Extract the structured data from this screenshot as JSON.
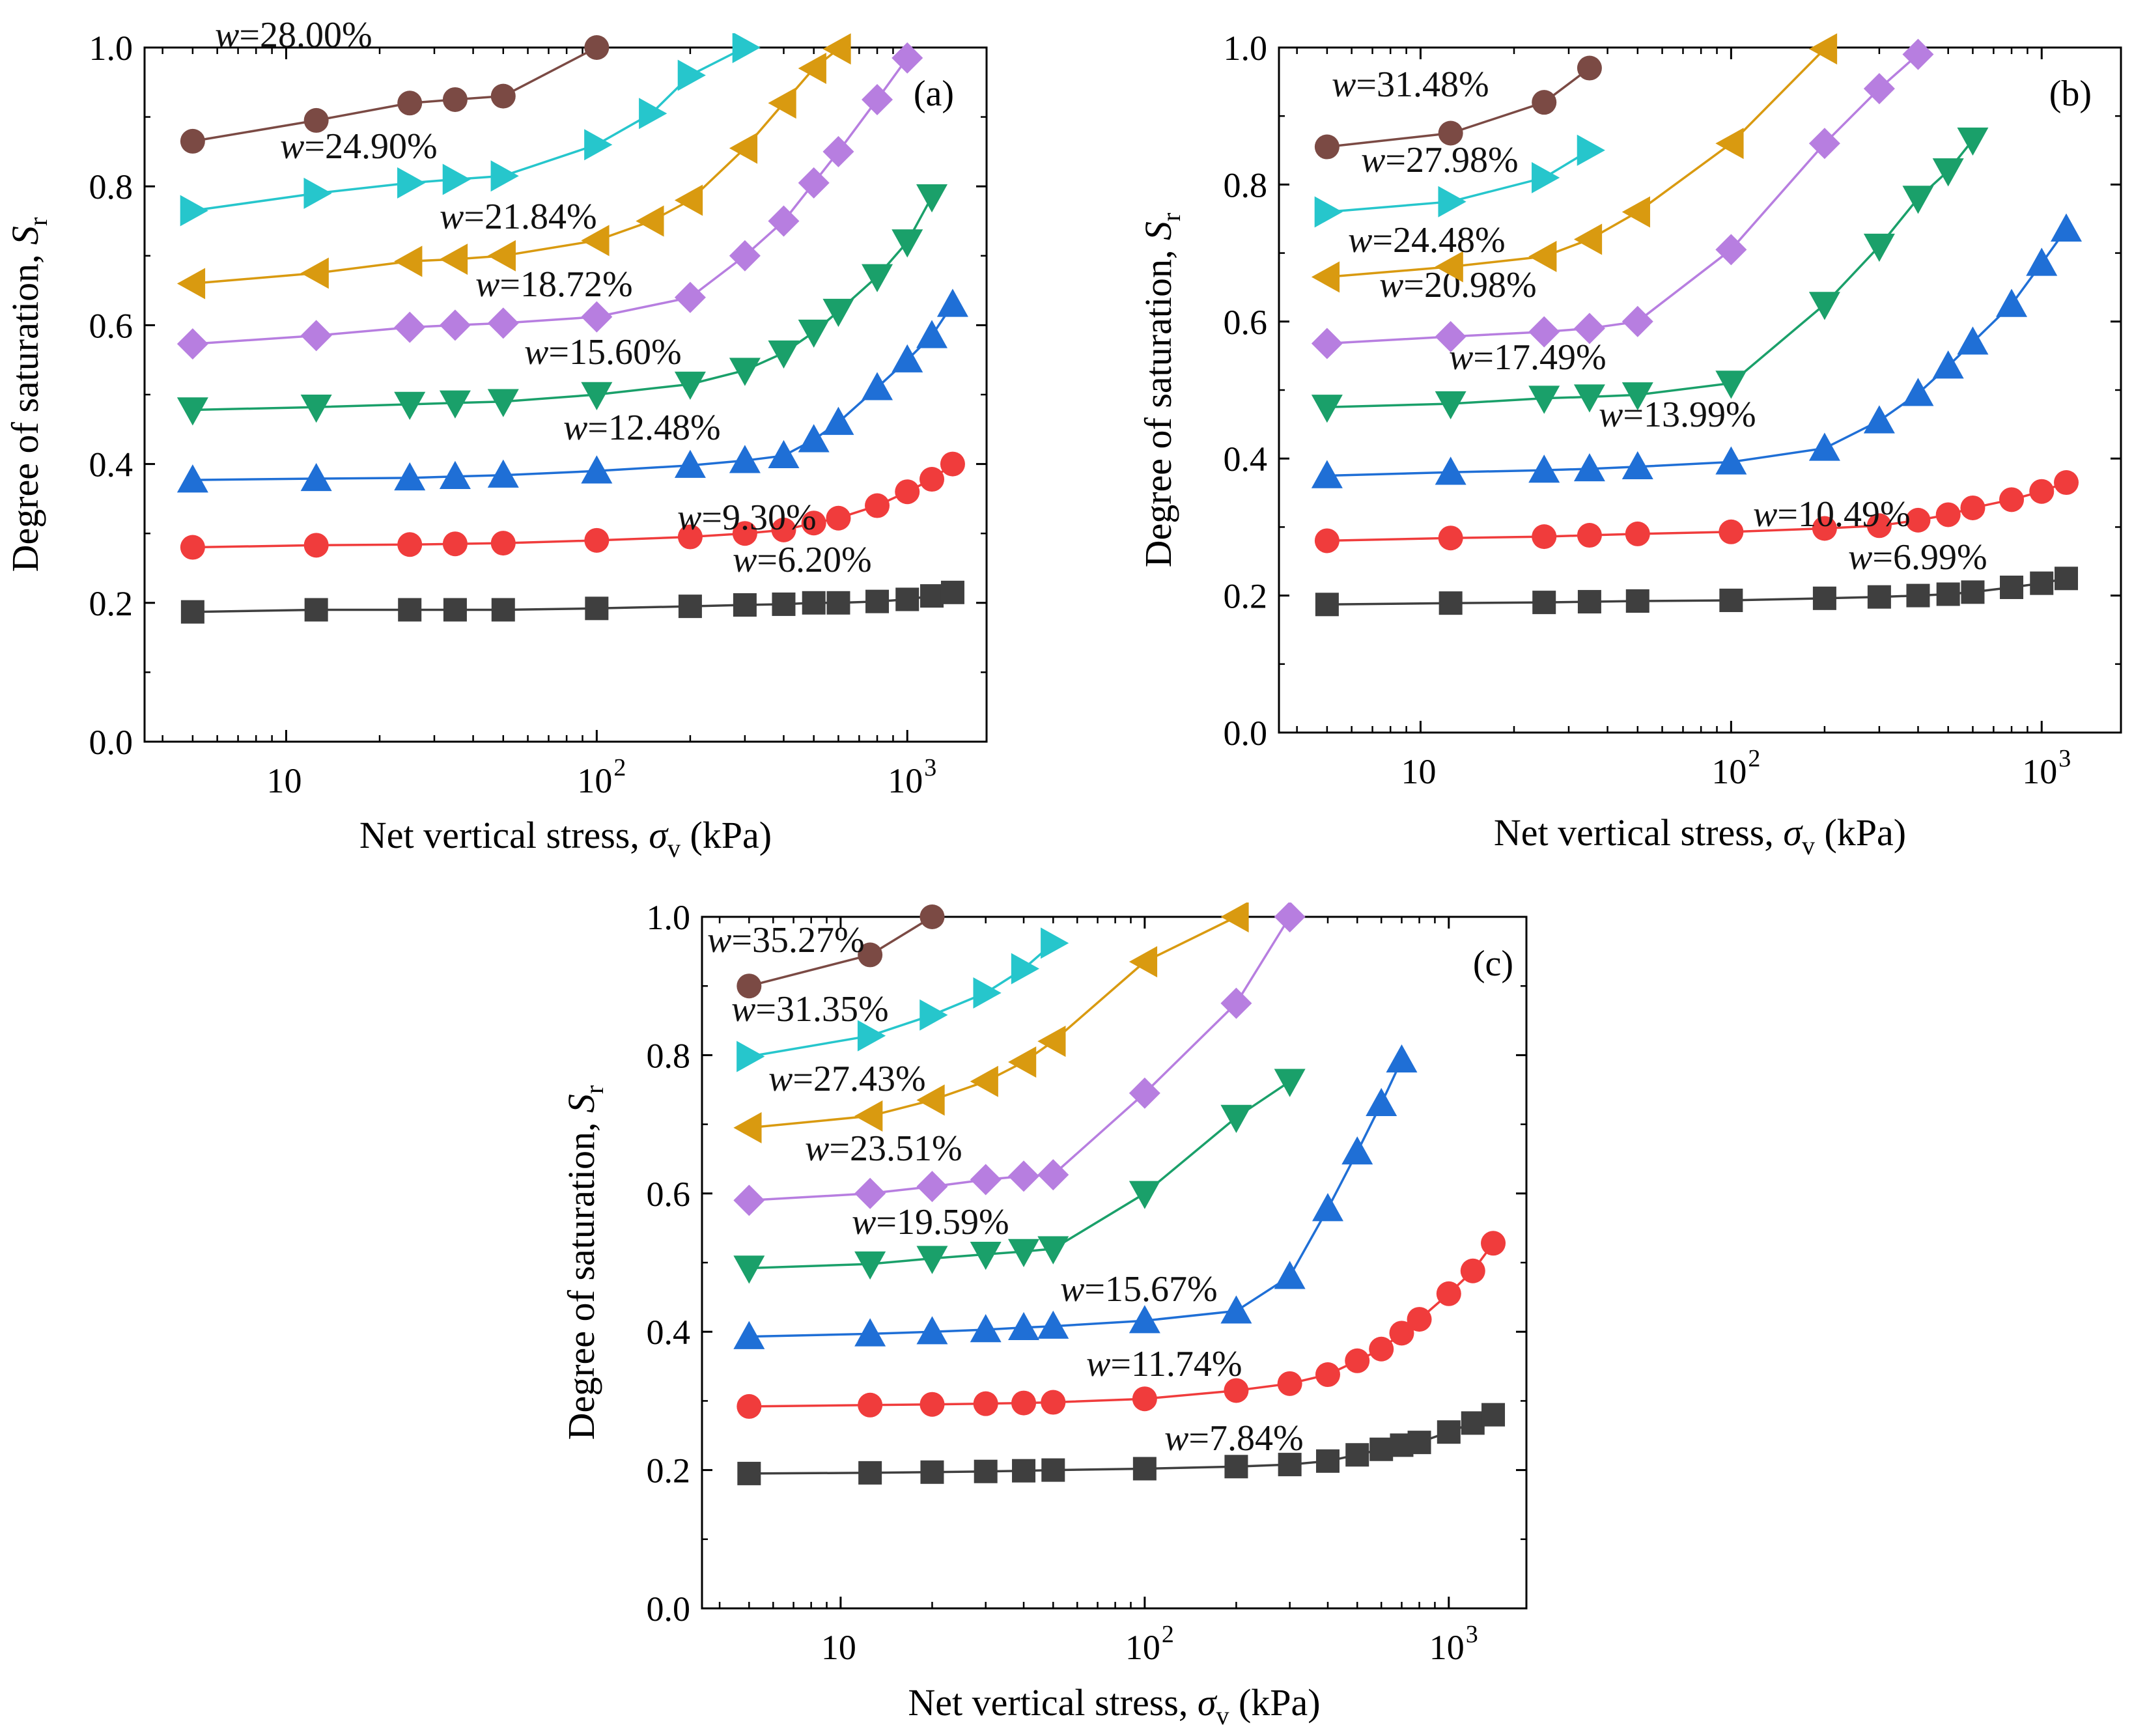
{
  "chart_data": [
    {
      "panel_label": "(a)",
      "type": "line",
      "xscale": "log",
      "xlim": [
        3.5,
        1800
      ],
      "ylim": [
        0,
        1.0
      ],
      "xlabel_prefix": "Net vertical stress, ",
      "xlabel_symbol": "σ",
      "xlabel_sub": "v",
      "xlabel_suffix": " (kPa)",
      "ylabel_prefix": "Degree of saturation, ",
      "ylabel_symbol": "S",
      "ylabel_sub": "r",
      "y_ticks": [
        "0.0",
        "0.2",
        "0.4",
        "0.6",
        "0.8",
        "1.0"
      ],
      "x_ticks": [
        {
          "base": "10",
          "exp": ""
        },
        {
          "base": "10",
          "exp": "2"
        },
        {
          "base": "10",
          "exp": "3"
        }
      ],
      "series": [
        {
          "name": "w=6.20%",
          "w_label": "w",
          "value_label": "=6.20%",
          "color": "#3f3f3f",
          "marker": "square",
          "x": [
            5,
            12.5,
            25,
            35,
            50,
            100,
            200,
            300,
            400,
            500,
            600,
            800,
            1000,
            1200,
            1400
          ],
          "y": [
            0.187,
            0.19,
            0.19,
            0.19,
            0.19,
            0.192,
            0.195,
            0.197,
            0.198,
            0.2,
            0.2,
            0.202,
            0.205,
            0.21,
            0.215
          ]
        },
        {
          "name": "w=9.30%",
          "w_label": "w",
          "value_label": "=9.30%",
          "color": "#f03c3c",
          "marker": "circle",
          "x": [
            5,
            12.5,
            25,
            35,
            50,
            100,
            200,
            300,
            400,
            500,
            600,
            800,
            1000,
            1200,
            1400
          ],
          "y": [
            0.28,
            0.283,
            0.284,
            0.285,
            0.286,
            0.29,
            0.295,
            0.3,
            0.305,
            0.315,
            0.322,
            0.34,
            0.36,
            0.378,
            0.4
          ]
        },
        {
          "name": "w=12.48%",
          "w_label": "w",
          "value_label": "=12.48%",
          "color": "#1f6fd6",
          "marker": "triangle-up",
          "x": [
            5,
            12.5,
            25,
            35,
            50,
            100,
            200,
            300,
            400,
            500,
            600,
            800,
            1000,
            1200,
            1400
          ],
          "y": [
            0.377,
            0.379,
            0.38,
            0.382,
            0.384,
            0.39,
            0.398,
            0.405,
            0.412,
            0.435,
            0.46,
            0.51,
            0.55,
            0.585,
            0.63
          ]
        },
        {
          "name": "w=15.60%",
          "w_label": "w",
          "value_label": "=15.60%",
          "color": "#1aa06a",
          "marker": "triangle-down",
          "x": [
            5,
            12.5,
            25,
            35,
            50,
            100,
            200,
            300,
            400,
            500,
            600,
            800,
            1000,
            1200
          ],
          "y": [
            0.478,
            0.482,
            0.486,
            0.488,
            0.49,
            0.5,
            0.515,
            0.535,
            0.56,
            0.59,
            0.62,
            0.67,
            0.72,
            0.785
          ]
        },
        {
          "name": "w=18.72%",
          "w_label": "w",
          "value_label": "=18.72%",
          "color": "#b77ee0",
          "marker": "diamond",
          "x": [
            5,
            12.5,
            25,
            35,
            50,
            100,
            200,
            300,
            400,
            500,
            600,
            800,
            1000
          ],
          "y": [
            0.573,
            0.585,
            0.597,
            0.6,
            0.603,
            0.612,
            0.64,
            0.7,
            0.75,
            0.805,
            0.85,
            0.925,
            0.985
          ]
        },
        {
          "name": "w=21.84%",
          "w_label": "w",
          "value_label": "=21.84%",
          "color": "#d99a10",
          "marker": "triangle-left",
          "x": [
            5,
            12.5,
            25,
            35,
            50,
            100,
            150,
            200,
            300,
            400,
            500,
            600
          ],
          "y": [
            0.66,
            0.675,
            0.692,
            0.695,
            0.7,
            0.722,
            0.75,
            0.78,
            0.855,
            0.92,
            0.97,
            0.998
          ]
        },
        {
          "name": "w=24.90%",
          "w_label": "w",
          "value_label": "=24.90%",
          "color": "#26c6cc",
          "marker": "triangle-right",
          "x": [
            5,
            12.5,
            25,
            35,
            50,
            100,
            150,
            200,
            300
          ],
          "y": [
            0.765,
            0.79,
            0.805,
            0.81,
            0.815,
            0.86,
            0.905,
            0.96,
            1.0
          ]
        },
        {
          "name": "w=28.00%",
          "w_label": "w",
          "value_label": "=28.00%",
          "color": "#7b4a44",
          "marker": "circle",
          "x": [
            5,
            12.5,
            25,
            35,
            50,
            100
          ],
          "y": [
            0.865,
            0.895,
            0.92,
            0.925,
            0.93,
            1.0
          ]
        }
      ]
    },
    {
      "panel_label": "(b)",
      "type": "line",
      "xscale": "log",
      "xlim": [
        3.5,
        1800
      ],
      "ylim": [
        0,
        1.0
      ],
      "xlabel_prefix": "Net vertical stress, ",
      "xlabel_symbol": "σ",
      "xlabel_sub": "v",
      "xlabel_suffix": " (kPa)",
      "ylabel_prefix": "Degree of saturation, ",
      "ylabel_symbol": "S",
      "ylabel_sub": "r",
      "y_ticks": [
        "0.0",
        "0.2",
        "0.4",
        "0.6",
        "0.8",
        "1.0"
      ],
      "x_ticks": [
        {
          "base": "10",
          "exp": ""
        },
        {
          "base": "10",
          "exp": "2"
        },
        {
          "base": "10",
          "exp": "3"
        }
      ],
      "series": [
        {
          "name": "w=6.99%",
          "w_label": "w",
          "value_label": "=6.99%",
          "color": "#3f3f3f",
          "marker": "square",
          "x": [
            5,
            12.5,
            25,
            35,
            50,
            100,
            200,
            300,
            400,
            500,
            600,
            800,
            1000,
            1200
          ],
          "y": [
            0.187,
            0.189,
            0.19,
            0.191,
            0.192,
            0.193,
            0.196,
            0.198,
            0.2,
            0.202,
            0.205,
            0.212,
            0.218,
            0.225
          ]
        },
        {
          "name": "w=10.49%",
          "w_label": "w",
          "value_label": "=10.49%",
          "color": "#f03c3c",
          "marker": "circle",
          "x": [
            5,
            12.5,
            25,
            35,
            50,
            100,
            200,
            300,
            400,
            500,
            600,
            800,
            1000,
            1200
          ],
          "y": [
            0.28,
            0.284,
            0.286,
            0.288,
            0.29,
            0.293,
            0.298,
            0.302,
            0.31,
            0.318,
            0.328,
            0.34,
            0.352,
            0.365
          ]
        },
        {
          "name": "w=13.99%",
          "w_label": "w",
          "value_label": "=13.99%",
          "color": "#1f6fd6",
          "marker": "triangle-up",
          "x": [
            5,
            12.5,
            25,
            35,
            50,
            100,
            200,
            300,
            400,
            500,
            600,
            800,
            1000,
            1200
          ],
          "y": [
            0.375,
            0.38,
            0.383,
            0.385,
            0.388,
            0.395,
            0.415,
            0.455,
            0.495,
            0.535,
            0.57,
            0.625,
            0.685,
            0.735
          ]
        },
        {
          "name": "w=17.49%",
          "w_label": "w",
          "value_label": "=17.49%",
          "color": "#1aa06a",
          "marker": "triangle-down",
          "x": [
            5,
            12.5,
            25,
            35,
            50,
            100,
            200,
            300,
            400,
            500,
            600
          ],
          "y": [
            0.475,
            0.48,
            0.488,
            0.49,
            0.493,
            0.51,
            0.625,
            0.71,
            0.78,
            0.82,
            0.865
          ]
        },
        {
          "name": "w=20.98%",
          "w_label": "w",
          "value_label": "=20.98%",
          "color": "#b77ee0",
          "marker": "diamond",
          "x": [
            5,
            12.5,
            25,
            35,
            50,
            100,
            200,
            300,
            400
          ],
          "y": [
            0.568,
            0.578,
            0.585,
            0.59,
            0.6,
            0.705,
            0.86,
            0.94,
            0.99
          ]
        },
        {
          "name": "w=24.48%",
          "w_label": "w",
          "value_label": "=24.48%",
          "color": "#d99a10",
          "marker": "triangle-left",
          "x": [
            5,
            12.5,
            25,
            35,
            50,
            100,
            200
          ],
          "y": [
            0.665,
            0.68,
            0.695,
            0.72,
            0.76,
            0.86,
            0.998
          ]
        },
        {
          "name": "w=27.98%",
          "w_label": "w",
          "value_label": "=27.98%",
          "color": "#26c6cc",
          "marker": "triangle-right",
          "x": [
            5,
            12.5,
            25,
            35
          ],
          "y": [
            0.76,
            0.775,
            0.81,
            0.85
          ]
        },
        {
          "name": "w=31.48%",
          "w_label": "w",
          "value_label": "=31.48%",
          "color": "#7b4a44",
          "marker": "circle",
          "x": [
            5,
            12.5,
            25,
            35
          ],
          "y": [
            0.855,
            0.875,
            0.92,
            0.97
          ]
        }
      ]
    },
    {
      "panel_label": "(c)",
      "type": "line",
      "xscale": "log",
      "xlim": [
        3.5,
        1800
      ],
      "ylim": [
        0,
        1.0
      ],
      "xlabel_prefix": "Net vertical stress, ",
      "xlabel_symbol": "σ",
      "xlabel_sub": "v",
      "xlabel_suffix": " (kPa)",
      "ylabel_prefix": "Degree of saturation, ",
      "ylabel_symbol": "S",
      "ylabel_sub": "r",
      "y_ticks": [
        "0.0",
        "0.2",
        "0.4",
        "0.6",
        "0.8",
        "1.0"
      ],
      "x_ticks": [
        {
          "base": "10",
          "exp": ""
        },
        {
          "base": "10",
          "exp": "2"
        },
        {
          "base": "10",
          "exp": "3"
        }
      ],
      "series": [
        {
          "name": "w=7.84%",
          "w_label": "w",
          "value_label": "=7.84%",
          "color": "#3f3f3f",
          "marker": "square",
          "x": [
            5,
            12.5,
            20,
            30,
            40,
            50,
            100,
            200,
            300,
            400,
            500,
            600,
            700,
            800,
            1000,
            1200,
            1400
          ],
          "y": [
            0.195,
            0.196,
            0.197,
            0.198,
            0.199,
            0.2,
            0.202,
            0.205,
            0.208,
            0.213,
            0.222,
            0.23,
            0.236,
            0.24,
            0.255,
            0.268,
            0.28
          ]
        },
        {
          "name": "w=11.74%",
          "w_label": "w",
          "value_label": "=11.74%",
          "color": "#f03c3c",
          "marker": "circle",
          "x": [
            5,
            12.5,
            20,
            30,
            40,
            50,
            100,
            200,
            300,
            400,
            500,
            600,
            700,
            800,
            1000,
            1200,
            1400
          ],
          "y": [
            0.292,
            0.294,
            0.295,
            0.296,
            0.297,
            0.298,
            0.303,
            0.315,
            0.325,
            0.338,
            0.358,
            0.375,
            0.398,
            0.418,
            0.455,
            0.488,
            0.528
          ]
        },
        {
          "name": "w=15.67%",
          "w_label": "w",
          "value_label": "=15.67%",
          "color": "#1f6fd6",
          "marker": "triangle-up",
          "x": [
            5,
            12.5,
            20,
            30,
            40,
            50,
            100,
            200,
            300,
            400,
            500,
            600,
            700
          ],
          "y": [
            0.393,
            0.397,
            0.4,
            0.403,
            0.406,
            0.408,
            0.416,
            0.43,
            0.48,
            0.578,
            0.66,
            0.73,
            0.793
          ]
        },
        {
          "name": "w=19.59%",
          "w_label": "w",
          "value_label": "=19.59%",
          "color": "#1aa06a",
          "marker": "triangle-down",
          "x": [
            5,
            12.5,
            20,
            30,
            40,
            50,
            100,
            200,
            300
          ],
          "y": [
            0.492,
            0.498,
            0.506,
            0.512,
            0.516,
            0.52,
            0.6,
            0.71,
            0.762
          ]
        },
        {
          "name": "w=23.51%",
          "w_label": "w",
          "value_label": "=23.51%",
          "color": "#b77ee0",
          "marker": "diamond",
          "x": [
            5,
            12.5,
            20,
            30,
            40,
            50,
            100,
            200,
            300
          ],
          "y": [
            0.59,
            0.6,
            0.61,
            0.62,
            0.625,
            0.627,
            0.745,
            0.875,
            1.0
          ]
        },
        {
          "name": "w=27.43%",
          "w_label": "w",
          "value_label": "=27.43%",
          "color": "#d99a10",
          "marker": "triangle-left",
          "x": [
            5,
            12.5,
            20,
            30,
            40,
            50,
            100,
            200
          ],
          "y": [
            0.695,
            0.712,
            0.735,
            0.762,
            0.79,
            0.82,
            0.935,
            1.0
          ]
        },
        {
          "name": "w=31.35%",
          "w_label": "w",
          "value_label": "=31.35%",
          "color": "#26c6cc",
          "marker": "triangle-right",
          "x": [
            5,
            12.5,
            20,
            30,
            40,
            50
          ],
          "y": [
            0.798,
            0.828,
            0.858,
            0.89,
            0.925,
            0.962
          ]
        },
        {
          "name": "w=35.27%",
          "w_label": "w",
          "value_label": "=35.27%",
          "color": "#7b4a44",
          "marker": "circle",
          "x": [
            5,
            12.5,
            20
          ],
          "y": [
            0.9,
            0.945,
            1.0
          ]
        }
      ]
    }
  ]
}
